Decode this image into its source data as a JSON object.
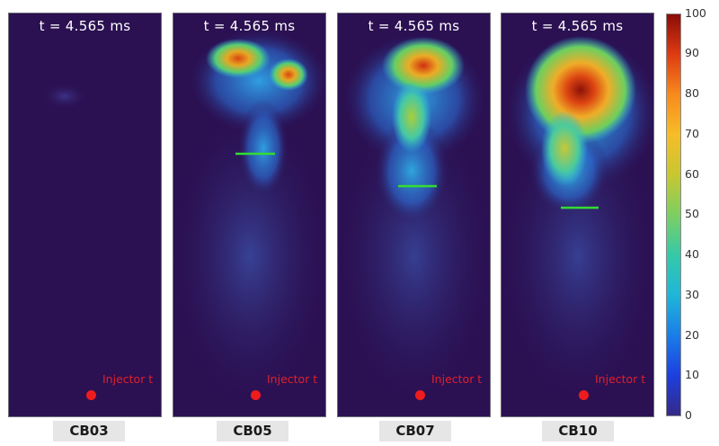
{
  "panels": [
    {
      "time": "t = 4.565 ms",
      "injector": "Injector t",
      "label": "CB03"
    },
    {
      "time": "t = 4.565 ms",
      "injector": "Injector t",
      "label": "CB05"
    },
    {
      "time": "t = 4.565 ms",
      "injector": "Injector t",
      "label": "CB07"
    },
    {
      "time": "t = 4.565 ms",
      "injector": "Injector t",
      "label": "CB10"
    }
  ],
  "colorbar": {
    "ticks": [
      "100",
      "90",
      "80",
      "70",
      "60",
      "50",
      "40",
      "30",
      "20",
      "10",
      "0"
    ],
    "colormap": [
      "#352a87",
      "#1d3fe0",
      "#1a7ee8",
      "#1fb6d8",
      "#35c9a8",
      "#7dcf62",
      "#c8c730",
      "#f6bd28",
      "#f78a1c",
      "#df3b12",
      "#8b0c08"
    ]
  },
  "colors": {
    "background_field": "#2b1052",
    "injector_marker": "#ee1c1c",
    "penetration_line": "#33dd33"
  }
}
